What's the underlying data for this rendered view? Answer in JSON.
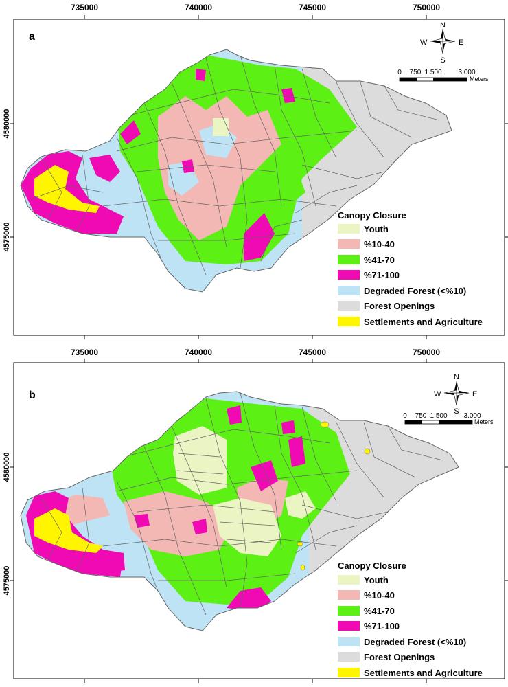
{
  "colors": {
    "youth": "#ebf5c4",
    "c10_40": "#f4b8b4",
    "c41_70": "#5cf015",
    "c71_100": "#f00ab4",
    "degraded": "#bde3f4",
    "openings": "#dcdcdc",
    "settlements": "#fff500",
    "boundary": "#646464"
  },
  "panels": [
    {
      "letter": "a",
      "x_ticks": [
        "735000",
        "740000",
        "745000",
        "750000"
      ],
      "y_ticks": [
        "4580000",
        "4575000"
      ],
      "compass": {
        "n": "N",
        "s": "S",
        "e": "E",
        "w": "W"
      },
      "scale": {
        "ticks": [
          "0",
          "750",
          "1.500",
          "3.000"
        ],
        "unit": "Meters"
      },
      "legend": {
        "title": "Canopy Closure",
        "items": [
          "Youth",
          "%10-40",
          "%41-70",
          "%71-100",
          "Degraded Forest (<%10)",
          "Forest Openings",
          "Settlements and Agriculture"
        ],
        "swatch_colors": [
          "#ebf5c4",
          "#f4b8b4",
          "#5cf015",
          "#f00ab4",
          "#bde3f4",
          "#dcdcdc",
          "#fff500"
        ]
      }
    },
    {
      "letter": "b",
      "x_ticks": [
        "735000",
        "740000",
        "745000",
        "750000"
      ],
      "y_ticks": [
        "4580000",
        "4575000"
      ],
      "compass": {
        "n": "N",
        "s": "S",
        "e": "E",
        "w": "W"
      },
      "scale": {
        "ticks": [
          "0",
          "750",
          "1.500",
          "3.000"
        ],
        "unit": "Meters"
      },
      "legend": {
        "title": "Canopy Closure",
        "items": [
          "Youth",
          "%10-40",
          "%41-70",
          "%71-100",
          "Degraded Forest (<%10)",
          "Forest Openings",
          "Settlements and Agriculture"
        ],
        "swatch_colors": [
          "#ebf5c4",
          "#f4b8b4",
          "#5cf015",
          "#f00ab4",
          "#bde3f4",
          "#dcdcdc",
          "#fff500"
        ]
      }
    }
  ]
}
